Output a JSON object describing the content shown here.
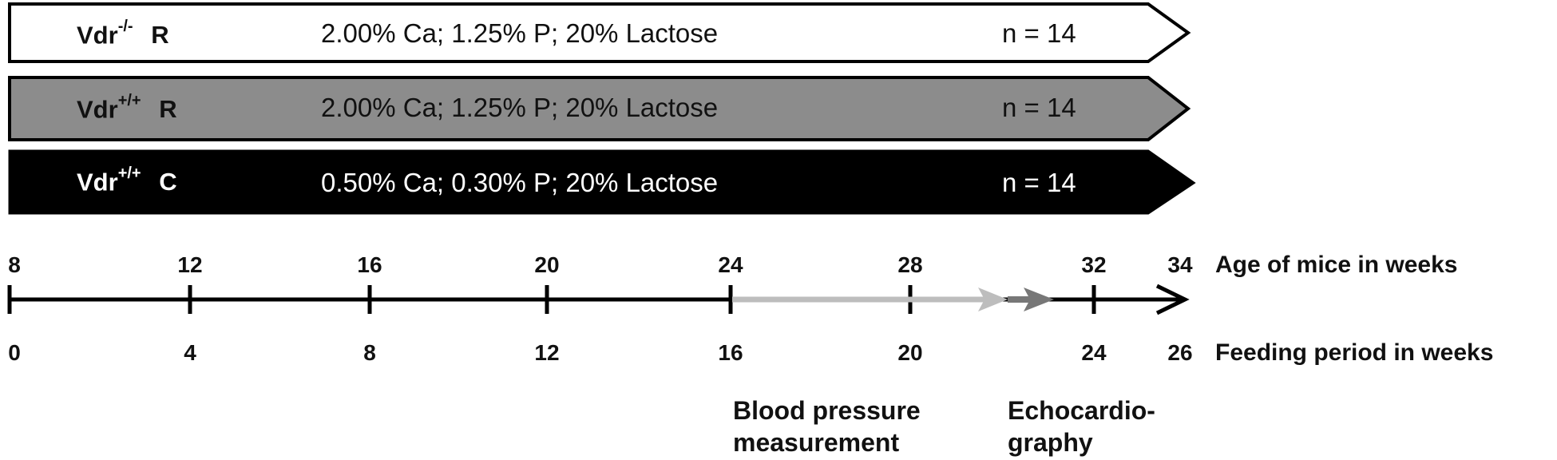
{
  "groups": [
    {
      "genotype_base": "Vdr",
      "genotype_sup": "-/-",
      "diet_code": "R",
      "diet": "2.00% Ca; 1.25% P; 20% Lactose",
      "n": "n = 14",
      "fill": "#ffffff",
      "text_color": "#111111"
    },
    {
      "genotype_base": "Vdr",
      "genotype_sup": "+/+",
      "diet_code": "R",
      "diet": "2.00% Ca; 1.25% P; 20% Lactose",
      "n": "n = 14",
      "fill": "#8c8c8c",
      "text_color": "#111111"
    },
    {
      "genotype_base": "Vdr",
      "genotype_sup": "+/+",
      "diet_code": "C",
      "diet": "0.50% Ca; 0.30% P; 20% Lactose",
      "n": "n = 14",
      "fill": "#000000",
      "text_color": "#ffffff"
    }
  ],
  "timeline": {
    "age_ticks": [
      "8",
      "12",
      "16",
      "20",
      "24",
      "28",
      "32",
      "34"
    ],
    "age_label": "Age of mice in weeks",
    "feeding_ticks": [
      "0",
      "4",
      "8",
      "12",
      "16",
      "20",
      "24",
      "26"
    ],
    "feeding_label": "Feeding period in weeks",
    "colors": {
      "axis": "#000000",
      "blood_pressure_arrow": "#bdbdbd",
      "echo_arrow": "#777777"
    }
  },
  "events": {
    "blood_pressure": [
      "Blood pressure",
      "measurement"
    ],
    "echocardiography": [
      "Echocardio-",
      "graphy"
    ]
  }
}
